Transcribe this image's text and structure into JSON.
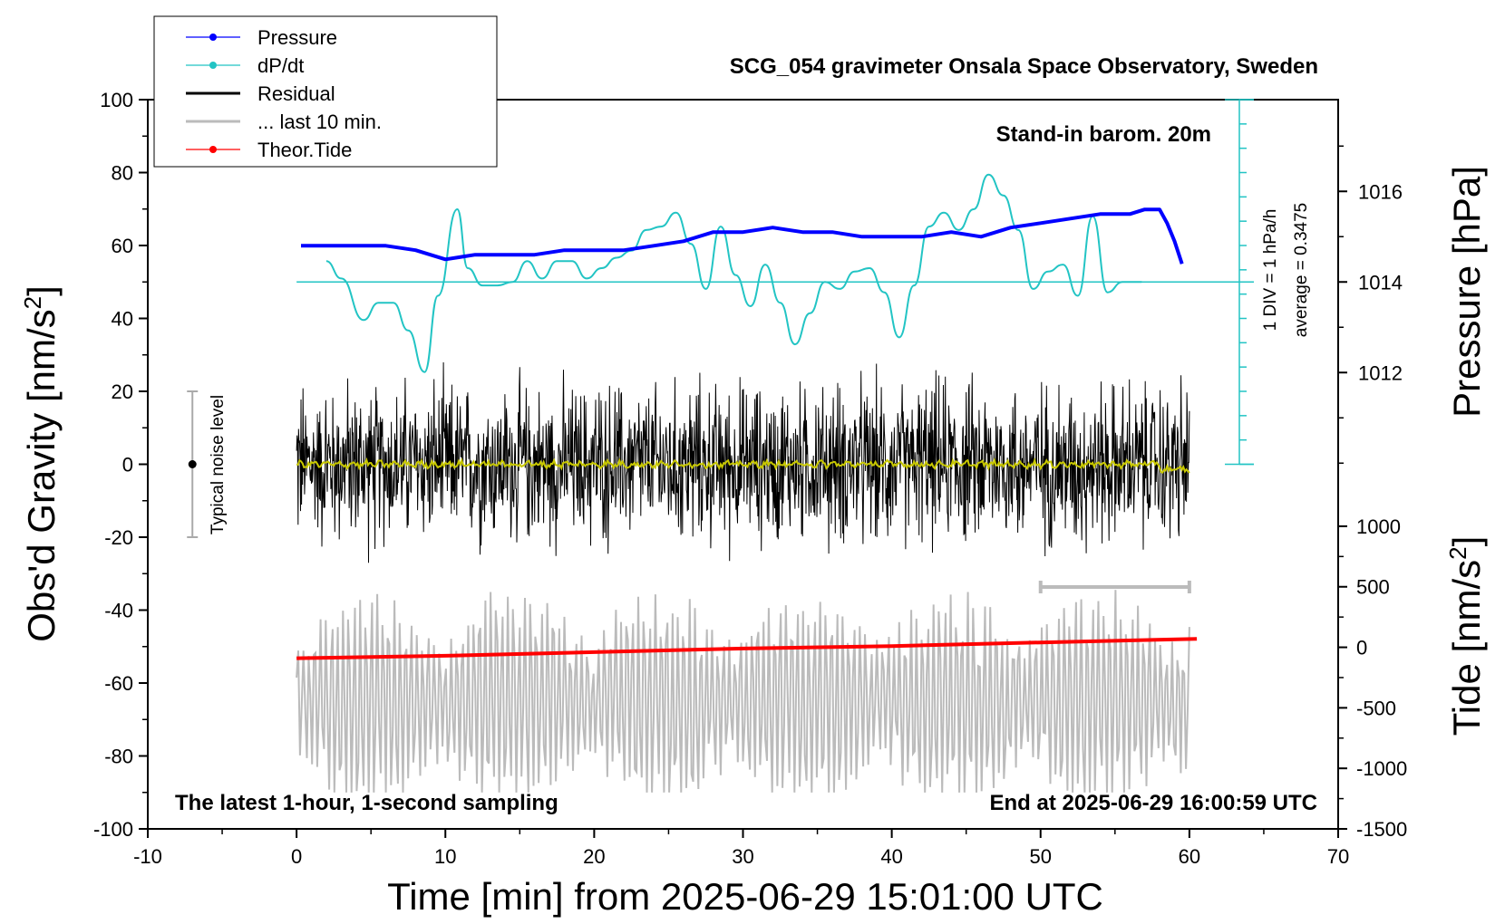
{
  "chart_data": {
    "type": "line",
    "title": "SCG_054 gravimeter Onsala Space Observatory, Sweden",
    "xlabel": "Time [min] from 2025-06-29 15:01:00 UTC",
    "ylabel_left": "Obs'd Gravity [nm/s",
    "ylabel_left_sup": "2",
    "ylabel_left_close": "]",
    "ylabel_right_pressure": "Pressure [hPa]",
    "ylabel_right_tide": "Tide [nm/s",
    "ylabel_right_tide_sup": "2",
    "ylabel_right_tide_close": "]",
    "xlim": [
      -10,
      70
    ],
    "ylim": [
      -100,
      100
    ],
    "xticks": [
      -10,
      0,
      10,
      20,
      30,
      40,
      50,
      60,
      70
    ],
    "yticks": [
      100,
      80,
      60,
      40,
      20,
      0,
      -20,
      -40,
      -60,
      -80,
      -100
    ],
    "pressure_ticks": [
      1016,
      1014,
      1012
    ],
    "pressure_lim": [
      1010,
      1018
    ],
    "tide_ticks": [
      1000,
      500,
      0,
      -500,
      -1000,
      -1500
    ],
    "tide_lim": [
      -1500,
      1000
    ],
    "annotations": {
      "barometer": "Stand-in barom. 20m",
      "div_label": "1 DIV = 1 hPa/h",
      "average_label": "average = 0.3475",
      "noise_label": "Typical noise level",
      "bottom_left": "The latest 1-hour, 1-second sampling",
      "bottom_right": "End at 2025-06-29 16:00:59 UTC"
    },
    "legend": [
      {
        "label": "Pressure",
        "color": "#0000ff",
        "marker": true
      },
      {
        "label": "dP/dt",
        "color": "#22c4c4",
        "marker": true
      },
      {
        "label": "Residual",
        "color": "#000000",
        "marker": false
      },
      {
        "label": "... last 10 min.",
        "color": "#bbbbbb",
        "marker": false
      },
      {
        "label": "Theor.Tide",
        "color": "#ff0000",
        "marker": true
      }
    ],
    "series": [
      {
        "name": "Pressure",
        "color": "#0000ff",
        "axis": "pressure",
        "x": [
          0.3,
          2,
          4,
          6,
          8,
          10,
          12,
          14,
          16,
          18,
          20,
          22,
          24,
          26,
          28,
          30,
          32,
          34,
          36,
          38,
          40,
          42,
          44,
          46,
          48,
          50,
          52,
          54,
          56,
          57,
          58,
          58.5,
          59,
          59.5
        ],
        "y": [
          1014.8,
          1014.8,
          1014.8,
          1014.8,
          1014.7,
          1014.5,
          1014.6,
          1014.6,
          1014.6,
          1014.7,
          1014.7,
          1014.7,
          1014.8,
          1014.9,
          1015.1,
          1015.1,
          1015.2,
          1015.1,
          1015.1,
          1015.0,
          1015.0,
          1015.0,
          1015.1,
          1015.0,
          1015.2,
          1015.3,
          1015.4,
          1015.5,
          1015.5,
          1015.6,
          1015.6,
          1015.3,
          1014.9,
          1014.4
        ]
      },
      {
        "name": "dP/dt",
        "color": "#22c4c4",
        "axis": "dpdt",
        "x": [
          2,
          3,
          4.5,
          5.5,
          6.5,
          7.5,
          8.6,
          9.5,
          10.8,
          11.5,
          12.5,
          13.5,
          14.5,
          15.5,
          16.5,
          17.5,
          18.5,
          19.5,
          20.5,
          21.5,
          22.5,
          23.5,
          24.5,
          25.5,
          26.5,
          27.5,
          28.5,
          29.5,
          30.5,
          31.5,
          32.5,
          33.5,
          34.5,
          35.5,
          36.5,
          37.5,
          38.5,
          39.5,
          40.5,
          41.5,
          42.5,
          43.5,
          44.5,
          45.5,
          46.5,
          47.5,
          48.5,
          49.5,
          50.5,
          51.5,
          52.5,
          53.5,
          54.5,
          55.5,
          56.3,
          56.8
        ],
        "y": [
          0.6,
          0.1,
          -1.1,
          -0.6,
          -0.6,
          -1.4,
          -2.6,
          -0.4,
          2.1,
          0.4,
          -0.1,
          -0.1,
          0.0,
          0.6,
          0.1,
          0.6,
          0.6,
          0.1,
          0.4,
          0.7,
          0.9,
          1.5,
          1.6,
          2.0,
          1.1,
          -0.2,
          1.6,
          0.2,
          -0.7,
          0.5,
          -0.6,
          -1.8,
          -0.9,
          0.0,
          -0.2,
          0.3,
          0.4,
          -0.3,
          -1.6,
          -0.1,
          1.6,
          2.0,
          1.5,
          2.1,
          3.1,
          2.5,
          1.5,
          -0.2,
          0.3,
          0.5,
          -0.4,
          1.9,
          -0.3,
          0.0,
          0.0,
          0.0
        ]
      },
      {
        "name": "Residual",
        "color": "#000000",
        "axis": "gravity",
        "x": [
          0,
          60
        ],
        "y_range": [
          -30,
          30
        ]
      },
      {
        "name": "... last 10 min.",
        "color": "#bbbbbb",
        "axis": "gravity",
        "x": [
          0,
          60
        ],
        "y_center": -65,
        "y_range": [
          -90,
          -33
        ]
      },
      {
        "name": "Theor.Tide",
        "color": "#ff0000",
        "axis": "tide",
        "x": [
          0,
          10,
          20,
          30,
          40,
          50,
          60.5
        ],
        "y": [
          -90,
          -70,
          -40,
          -10,
          10,
          40,
          70
        ]
      }
    ],
    "dpdt_axis": {
      "zero_y": 50,
      "div_per_unit": 5,
      "divisions": 10
    },
    "noise_bar": {
      "x": -7,
      "y_low": -20,
      "y_high": 20,
      "center": 0
    },
    "scale_bar_minutes": [
      50,
      60
    ]
  }
}
